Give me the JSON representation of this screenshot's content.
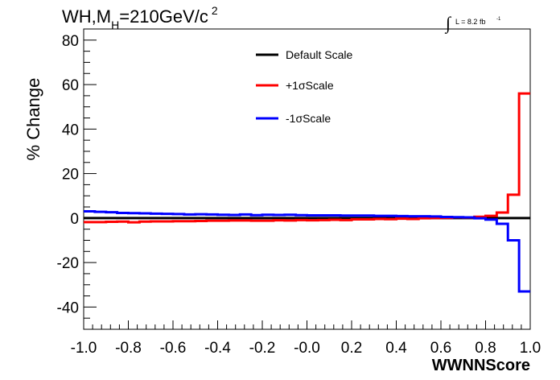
{
  "title": {
    "main_prefix": "WH,M",
    "main_sub": "H",
    "main_suffix": "=210GeV/c",
    "main_sup": "2",
    "lumi_integral": "∫",
    "lumi_text": "L = 8.2 fb",
    "lumi_sup": "-1"
  },
  "chart_data": {
    "type": "line",
    "xlabel": "WWNNScore",
    "ylabel": "% Change",
    "xlim": [
      -1.0,
      1.0
    ],
    "ylim": [
      -50,
      85
    ],
    "x_ticks": [
      "-1.0",
      "-0.8",
      "-0.6",
      "-0.4",
      "-0.2",
      "-0.0",
      "0.2",
      "0.4",
      "0.6",
      "0.8",
      "1.0"
    ],
    "y_ticks": [
      "-40",
      "-20",
      "0",
      "20",
      "40",
      "60",
      "80"
    ],
    "bin_edges": [
      -1.0,
      -0.95,
      -0.9,
      -0.85,
      -0.8,
      -0.75,
      -0.7,
      -0.65,
      -0.6,
      -0.55,
      -0.5,
      -0.45,
      -0.4,
      -0.35,
      -0.3,
      -0.25,
      -0.2,
      -0.15,
      -0.1,
      -0.05,
      0.0,
      0.05,
      0.1,
      0.15,
      0.2,
      0.25,
      0.3,
      0.35,
      0.4,
      0.45,
      0.5,
      0.55,
      0.6,
      0.65,
      0.7,
      0.75,
      0.8,
      0.85,
      0.9,
      0.95,
      1.0
    ],
    "series": [
      {
        "name": "Default Scale",
        "color": "#000000",
        "values": [
          0,
          0,
          0,
          0,
          0,
          0,
          0,
          0,
          0,
          0,
          0,
          0,
          0,
          0,
          0,
          0,
          0,
          0,
          0,
          0,
          0,
          0,
          0,
          0,
          0,
          0,
          0,
          0,
          0,
          0,
          0,
          0,
          0,
          0,
          0,
          0,
          0,
          0,
          0,
          0
        ]
      },
      {
        "name": "+1σScale",
        "color": "#ff0000",
        "values": [
          -1.8,
          -1.8,
          -1.7,
          -1.6,
          -1.9,
          -1.6,
          -1.5,
          -1.5,
          -1.4,
          -1.4,
          -1.3,
          -1.2,
          -1.2,
          -1.1,
          -1.1,
          -1.2,
          -1.2,
          -1.0,
          -1.1,
          -0.9,
          -1.0,
          -0.9,
          -0.8,
          -0.9,
          -0.6,
          -0.6,
          -0.4,
          -0.5,
          -0.3,
          -0.4,
          -0.1,
          0.0,
          0.1,
          0.3,
          0.2,
          0.6,
          1.0,
          2.5,
          10.5,
          56.0
        ]
      },
      {
        "name": "-1σScale",
        "color": "#0000ff",
        "values": [
          3.0,
          2.8,
          2.6,
          2.3,
          2.2,
          2.1,
          2.0,
          1.9,
          1.8,
          1.6,
          1.7,
          1.6,
          1.5,
          1.4,
          1.6,
          1.3,
          1.5,
          1.4,
          1.5,
          1.3,
          1.2,
          1.2,
          1.2,
          1.1,
          1.1,
          1.1,
          1.0,
          1.0,
          0.9,
          0.8,
          0.8,
          0.7,
          0.5,
          0.4,
          0.3,
          -0.1,
          -0.7,
          -2.6,
          -10.0,
          -33.0
        ]
      }
    ],
    "legend_position": "top-center",
    "grid": false
  }
}
